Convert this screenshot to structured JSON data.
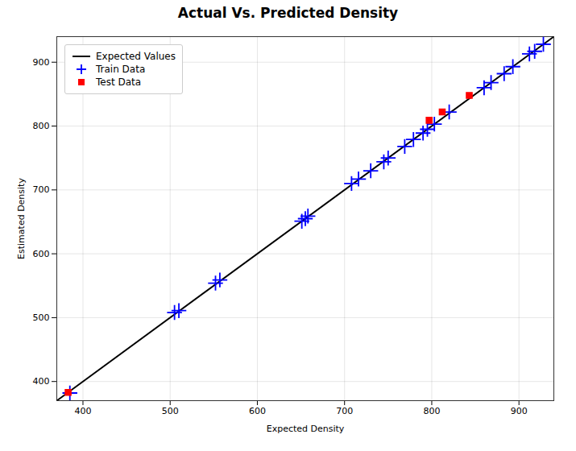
{
  "chart_data": {
    "type": "scatter",
    "title": "Actual Vs. Predicted Density",
    "xlabel": "Expected Density",
    "ylabel": "Estimated Density",
    "series": [
      {
        "name": "Expected Values",
        "type": "line",
        "color": "black",
        "line_style": "solid",
        "x": [
          370,
          940
        ],
        "values": [
          370,
          940
        ]
      },
      {
        "name": "Train Data",
        "type": "scatter",
        "color": "blue",
        "marker": "plus",
        "x": [
          385,
          505,
          510,
          552,
          557,
          651,
          655,
          658,
          708,
          716,
          730,
          745,
          750,
          769,
          779,
          790,
          795,
          803,
          820,
          860,
          868,
          883,
          893,
          912,
          918,
          928
        ],
        "values": [
          382,
          508,
          511,
          554,
          559,
          651,
          655,
          659,
          710,
          717,
          730,
          744,
          750,
          768,
          779,
          789,
          795,
          803,
          822,
          860,
          868,
          882,
          893,
          913,
          917,
          928
        ]
      },
      {
        "name": "Test Data",
        "type": "scatter",
        "color": "red",
        "marker": "square",
        "x": [
          383,
          797,
          812,
          843
        ],
        "values": [
          383,
          809,
          822,
          848
        ]
      }
    ],
    "xlim": [
      370,
      940
    ],
    "ylim": [
      370,
      940
    ],
    "xticks": [
      400,
      500,
      600,
      700,
      800,
      900
    ],
    "yticks": [
      400,
      500,
      600,
      700,
      800,
      900
    ],
    "grid": true,
    "legend": "upper left"
  }
}
